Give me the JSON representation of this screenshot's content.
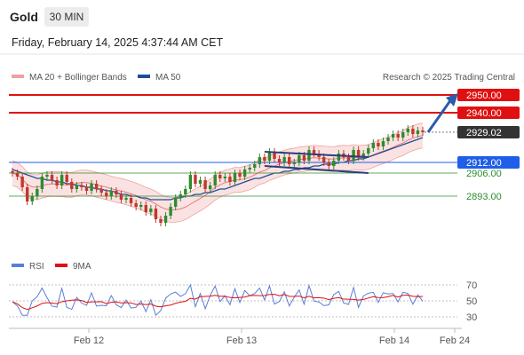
{
  "header": {
    "title": "Gold",
    "timeframe": "30 MIN",
    "datetime": "Friday, February 14, 2025 4:37:44 AM CET"
  },
  "legend": {
    "bollinger": "MA 20 + Bollinger Bands",
    "ma50": "MA 50",
    "source": "Research © 2025 Trading Central",
    "rsi": "RSI",
    "rsi_ma": "9MA"
  },
  "colors": {
    "bollinger": "#f0a0a0",
    "ma50": "#1f4e96",
    "red_level": "#e01010",
    "blue_level": "#1f5ee8",
    "green_level": "#2e8b2e",
    "current": "#333333",
    "candle_up": "#2e8b2e",
    "candle_down": "#c0392b",
    "arrow": "#2a5caa"
  },
  "chart_data": [
    {
      "type": "candlestick",
      "x_ticks": [
        "Feb 12",
        "Feb 13",
        "Feb 14",
        "Feb 24"
      ],
      "levels": [
        {
          "value": 2950.0,
          "label": "2950.00",
          "style": "resistance"
        },
        {
          "value": 2940.0,
          "label": "2940.00",
          "style": "resistance"
        },
        {
          "value": 2929.02,
          "label": "2929.02",
          "style": "current"
        },
        {
          "value": 2912.0,
          "label": "2912.00",
          "style": "support"
        },
        {
          "value": 2906.0,
          "label": "2906.00",
          "style": "green"
        },
        {
          "value": 2893.0,
          "label": "2893.00",
          "style": "green"
        }
      ],
      "closes": [
        2906,
        2904,
        2898,
        2890,
        2893,
        2897,
        2904,
        2905,
        2902,
        2899,
        2905,
        2901,
        2897,
        2899,
        2898,
        2896,
        2900,
        2897,
        2895,
        2893,
        2896,
        2894,
        2891,
        2892,
        2889,
        2887,
        2888,
        2884,
        2886,
        2880,
        2878,
        2882,
        2887,
        2892,
        2894,
        2897,
        2905,
        2900,
        2902,
        2897,
        2899,
        2905,
        2903,
        2904,
        2901,
        2906,
        2904,
        2908,
        2909,
        2911,
        2915,
        2913,
        2918,
        2914,
        2912,
        2915,
        2911,
        2912,
        2916,
        2913,
        2919,
        2917,
        2915,
        2912,
        2910,
        2913,
        2917,
        2915,
        2913,
        2919,
        2915,
        2917,
        2920,
        2923,
        2921,
        2924,
        2926,
        2928,
        2926,
        2929,
        2931,
        2928,
        2930,
        2929
      ],
      "ma50": [
        2908,
        2907,
        2906,
        2905,
        2904,
        2903,
        2903,
        2902,
        2902,
        2901,
        2901,
        2900,
        2900,
        2899,
        2899,
        2898,
        2898,
        2897,
        2897,
        2896,
        2896,
        2895,
        2894,
        2894,
        2893,
        2893,
        2892,
        2892,
        2891,
        2891,
        2891,
        2891,
        2891,
        2892,
        2892,
        2893,
        2893,
        2894,
        2894,
        2895,
        2895,
        2896,
        2897,
        2897,
        2898,
        2899,
        2900,
        2901,
        2902,
        2903,
        2903,
        2904,
        2905,
        2906,
        2906,
        2907,
        2907,
        2908,
        2908,
        2909,
        2909,
        2910,
        2910,
        2911,
        2911,
        2911,
        2912,
        2912,
        2913,
        2913,
        2914,
        2914,
        2915,
        2916,
        2917,
        2918,
        2919,
        2920,
        2921,
        2922,
        2923,
        2924,
        2925,
        2926
      ],
      "channel": {
        "upper": [
          2918,
          2915
        ],
        "lower": [
          2910,
          2906
        ]
      },
      "rsi_axis": [
        70,
        50,
        30
      ]
    }
  ]
}
